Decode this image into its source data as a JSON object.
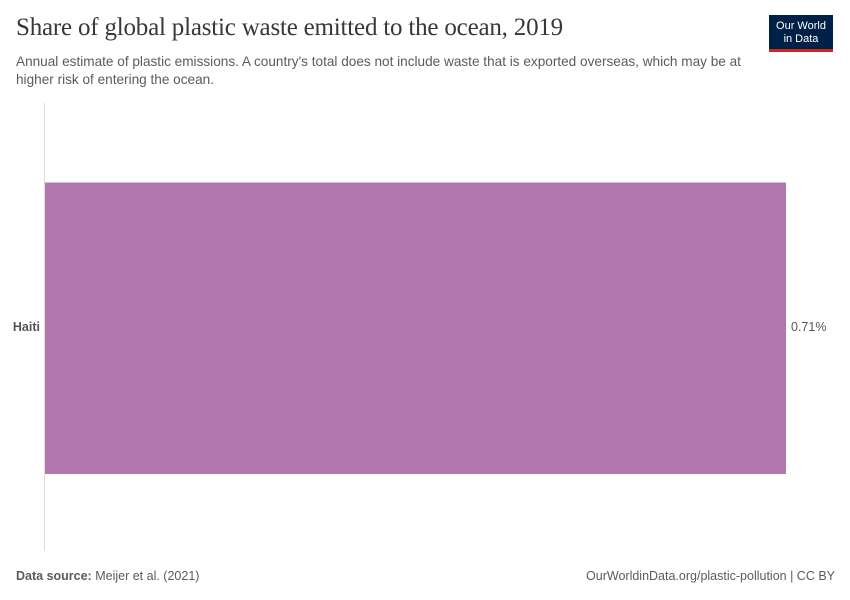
{
  "header": {
    "title": "Share of global plastic waste emitted to the ocean, 2019",
    "subtitle": "Annual estimate of plastic emissions. A country's total does not include waste that is exported overseas, which may be at higher risk of entering the ocean.",
    "logo_line1": "Our World",
    "logo_line2": "in Data"
  },
  "chart_data": {
    "type": "bar",
    "orientation": "horizontal",
    "title": "Share of global plastic waste emitted to the ocean, 2019",
    "subtitle": "Annual estimate of plastic emissions. A country's total does not include waste that is exported overseas, which may be at higher risk of entering the ocean.",
    "categories": [
      "Haiti"
    ],
    "values": [
      0.71
    ],
    "value_labels": [
      "0.71%"
    ],
    "unit": "%",
    "xlabel": "",
    "ylabel": "",
    "xlim": [
      0,
      0.71
    ],
    "grid": false,
    "bar_color": "#b377b0"
  },
  "bars": [
    {
      "label": "Haiti",
      "value": 0.71,
      "value_label": "0.71%"
    }
  ],
  "footer": {
    "source_label": "Data source:",
    "source_value": "Meijer et al. (2021)",
    "right_text": "OurWorldinData.org/plastic-pollution | CC BY"
  },
  "colors": {
    "bar": "#b377b0",
    "logo_bg": "#002147",
    "logo_accent": "#ce261e"
  }
}
